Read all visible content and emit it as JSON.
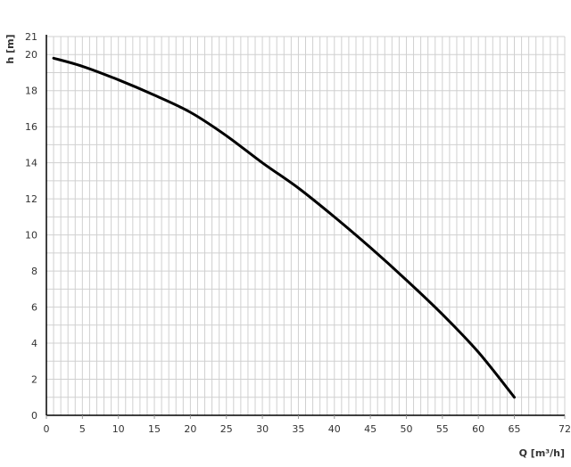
{
  "chart_data": {
    "type": "line",
    "title": "",
    "xlabel": "Q [m³/h]",
    "ylabel": "h [m]",
    "xlim": [
      0,
      72
    ],
    "ylim": [
      0,
      21
    ],
    "xticks": [
      0,
      5,
      10,
      15,
      20,
      25,
      30,
      35,
      40,
      45,
      50,
      55,
      60,
      65,
      72
    ],
    "yticks": [
      0,
      2,
      4,
      6,
      8,
      10,
      12,
      14,
      16,
      18,
      20,
      21
    ],
    "grid": true,
    "grid_minor_step_x": 1,
    "grid_minor_step_y": 1,
    "colors": {
      "curve": "#000000",
      "grid": "#d0d0d0",
      "axis": "#000000"
    },
    "series": [
      {
        "x": [
          1,
          5,
          10,
          15,
          20,
          25,
          30,
          35,
          40,
          45,
          50,
          55,
          60,
          65
        ],
        "y": [
          19.8,
          19.35,
          18.6,
          17.75,
          16.8,
          15.5,
          14.0,
          12.6,
          11.0,
          9.3,
          7.5,
          5.6,
          3.5,
          1.0
        ]
      }
    ]
  }
}
